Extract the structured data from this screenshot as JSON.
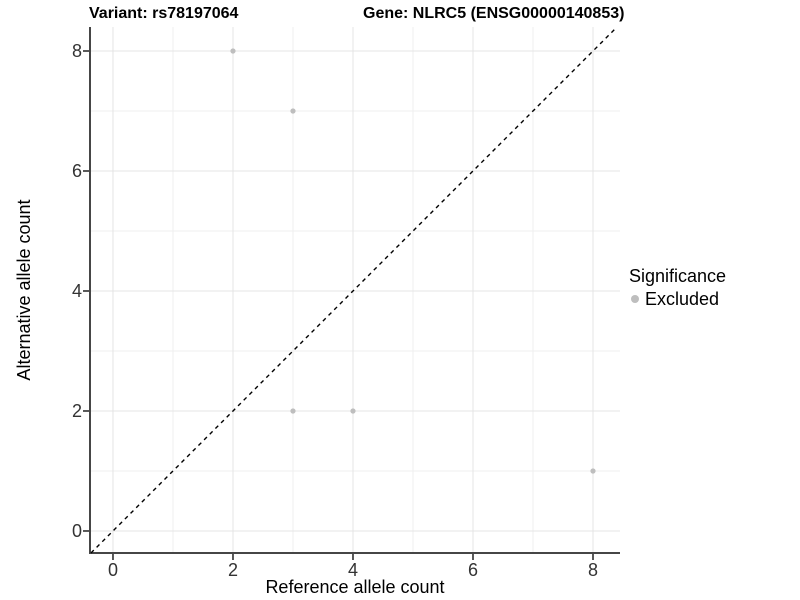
{
  "chart_data": {
    "type": "scatter",
    "title_left": "Variant: rs78197064",
    "title_right": "Gene: NLRC5 (ENSG00000140853)",
    "xlabel": "Reference allele count",
    "ylabel": "Alternative allele count",
    "xlim": [
      -0.383,
      8.45
    ],
    "ylim": [
      -0.367,
      8.4
    ],
    "xticks": [
      0,
      2,
      4,
      6,
      8
    ],
    "yticks": [
      0,
      2,
      4,
      6,
      8
    ],
    "grid_major": [
      0,
      2,
      4,
      6,
      8
    ],
    "grid_minor": [
      1,
      3,
      5,
      7
    ],
    "grid": true,
    "legend_position": "right",
    "series": [
      {
        "name": "Excluded",
        "marker_color": "#bebebe",
        "points": [
          [
            2,
            8
          ],
          [
            3,
            7
          ],
          [
            3,
            2
          ],
          [
            4,
            2
          ],
          [
            8,
            1
          ]
        ]
      }
    ],
    "reference_line": {
      "type": "identity y=x",
      "style": "dashed",
      "color": "#000000"
    },
    "legend": {
      "title": "Significance",
      "items": [
        {
          "label": "Excluded",
          "color": "#bebebe"
        }
      ]
    },
    "colors": {
      "grid_major": "#e4e4e4",
      "grid_minor": "#efefef",
      "axis_line": "#464646",
      "tick_label": "#333333",
      "background": "#ffffff"
    }
  }
}
